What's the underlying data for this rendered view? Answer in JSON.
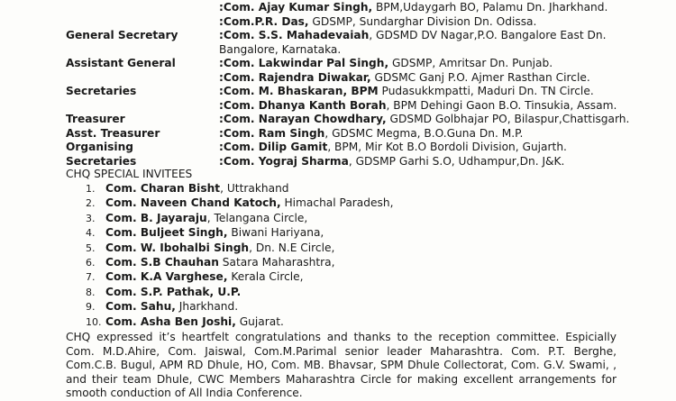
{
  "officers": [
    {
      "label": "",
      "name": "Com. Ajay Kumar Singh,",
      "detail": " BPM,Udaygarh BO, Palamu Dn. Jharkhand."
    },
    {
      "label": "",
      "name": "Com.P.R. Das,",
      "detail": " GDSMP, Sundarghar Division Dn. Odissa."
    },
    {
      "label": "General Secretary",
      "name": "Com. S.S. Mahadevaiah",
      "detail": ", GDSMD DV Nagar,P.O. Bangalore East Dn."
    },
    {
      "label": "",
      "name": "",
      "detail": "Bangalore, Karnataka.",
      "cont": true
    },
    {
      "label": "Assistant General",
      "name": "Com. Lakwindar Pal Singh,",
      "detail": " GDSMP, Amritsar Dn. Punjab."
    },
    {
      "label": "",
      "name": "Com. Rajendra Diwakar,",
      "detail": " GDSMC Ganj P.O. Ajmer Rasthan Circle."
    },
    {
      "label": "Secretaries",
      "name": "Com. M. Bhaskaran, BPM",
      "detail": " Pudasukkmpatti, Maduri Dn. TN Circle."
    },
    {
      "label": "",
      "name": "Com. Dhanya Kanth Borah",
      "detail": ", BPM Dehingi Gaon B.O. Tinsukia, Assam."
    },
    {
      "label": "Treasurer",
      "name": "Com. Narayan Chowdhary,",
      "detail": " GDSMD Golbhajar PO, Bilaspur,Chattisgarh."
    },
    {
      "label": "Asst. Treasurer",
      "name": "Com. Ram Singh",
      "detail": ", GDSMC Megma, B.O.Guna Dn. M.P."
    },
    {
      "label": "Organising",
      "name": "Com. Dilip Gamit",
      "detail": ", BPM,  Mir Kot B.O Bordoli Division, Gujarth."
    },
    {
      "label": "Secretaries",
      "name": "Com. Yograj Sharma",
      "detail": ", GDSMP Garhi S.O, Udhampur,Dn. J&K."
    }
  ],
  "invitees_heading": "CHQ SPECIAL INVITEES",
  "invitees": [
    {
      "num": "1.",
      "name": "Com. Charan Bisht",
      "detail": ", Uttrakhand"
    },
    {
      "num": "2.",
      "name": "Com. Naveen Chand Katoch,",
      "detail": " Himachal Paradesh,"
    },
    {
      "num": "3.",
      "name": "Com. B. Jayaraju",
      "detail": ", Telangana Circle,"
    },
    {
      "num": "4.",
      "name": "Com. Buljeet Singh,",
      "detail": " Biwani Hariyana,"
    },
    {
      "num": "5.",
      "name": "Com. W. Ibohalbi Singh",
      "detail": ",  Dn. N.E Circle,"
    },
    {
      "num": "6.",
      "name": "Com. S.B Chauhan",
      "detail": " Satara Maharashtra,"
    },
    {
      "num": "7.",
      "name": "Com. K.A Varghese,",
      "detail": " Kerala Circle,"
    },
    {
      "num": "8.",
      "name": "Com. S.P. Pathak, U.P.",
      "detail": ""
    },
    {
      "num": "9.",
      "name": "Com. Sahu,",
      "detail": " Jharkhand."
    },
    {
      "num": "10.",
      "name": "Com.  Asha Ben Joshi,",
      "detail": " Gujarat."
    }
  ],
  "closing_paragraph": "CHQ expressed it’s heartfelt congratulations and thanks to the reception committee. Espicially Com. M.D.Ahire, Com. Jaiswal, Com.M.Parimal senior leader Maharashtra. Com. P.T. Berghe, Com.C.B. Bugul, APM RD Dhule, HO, Com. MB. Bhavsar, SPM Dhule Collectorat, Com. G.V. Swami, ,  and their team Dhule, CWC Members Maharashtra Circle for making excellent arrangements for smooth conduction of All India Conference."
}
